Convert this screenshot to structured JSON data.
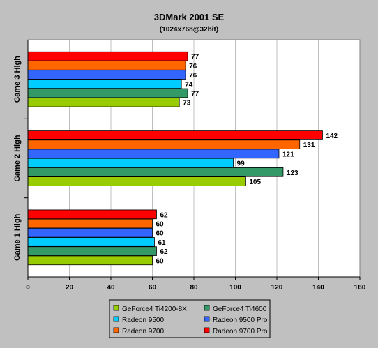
{
  "chart_data": {
    "type": "bar",
    "orientation": "horizontal",
    "title": "3DMark 2001 SE",
    "subtitle": "(1024x768@32bit)",
    "xlabel": "",
    "ylabel": "",
    "xlim": [
      0,
      160
    ],
    "x_ticks": [
      0,
      20,
      40,
      60,
      80,
      100,
      120,
      140,
      160
    ],
    "grid": "vertical",
    "legend_position": "bottom",
    "groups": [
      {
        "label": "Game 3 High",
        "bars": [
          {
            "series": "Radeon 9700 Pro",
            "value": 77
          },
          {
            "series": "Radeon 9700",
            "value": 76
          },
          {
            "series": "Radeon 9500 Pro",
            "value": 76
          },
          {
            "series": "Radeon 9500",
            "value": 74
          },
          {
            "series": "GeForce4 Ti4600",
            "value": 77
          },
          {
            "series": "GeForce4 Ti4200-8X",
            "value": 73
          }
        ]
      },
      {
        "label": "Game 2 High",
        "bars": [
          {
            "series": "Radeon 9700 Pro",
            "value": 142
          },
          {
            "series": "Radeon 9700",
            "value": 131
          },
          {
            "series": "Radeon 9500 Pro",
            "value": 121
          },
          {
            "series": "Radeon 9500",
            "value": 99
          },
          {
            "series": "GeForce4 Ti4600",
            "value": 123
          },
          {
            "series": "GeForce4 Ti4200-8X",
            "value": 105
          }
        ]
      },
      {
        "label": "Game 1 High",
        "bars": [
          {
            "series": "Radeon 9700 Pro",
            "value": 62
          },
          {
            "series": "Radeon 9700",
            "value": 60
          },
          {
            "series": "Radeon 9500 Pro",
            "value": 60
          },
          {
            "series": "Radeon 9500",
            "value": 61
          },
          {
            "series": "GeForce4 Ti4600",
            "value": 62
          },
          {
            "series": "GeForce4 Ti4200-8X",
            "value": 60
          }
        ]
      }
    ],
    "legend": [
      {
        "name": "GeForce4 Ti4200-8X",
        "color": "#99cc00"
      },
      {
        "name": "GeForce4 Ti4600",
        "color": "#339966"
      },
      {
        "name": "Radeon 9500",
        "color": "#00ccff"
      },
      {
        "name": "Radeon 9500 Pro",
        "color": "#3366ff"
      },
      {
        "name": "Radeon 9700",
        "color": "#ff6600"
      },
      {
        "name": "Radeon 9700 Pro",
        "color": "#ff0000"
      }
    ],
    "colors": {
      "background": "#c0c0c0",
      "plot_area": "#ffffff",
      "gridline": "#c0c0c0"
    }
  }
}
